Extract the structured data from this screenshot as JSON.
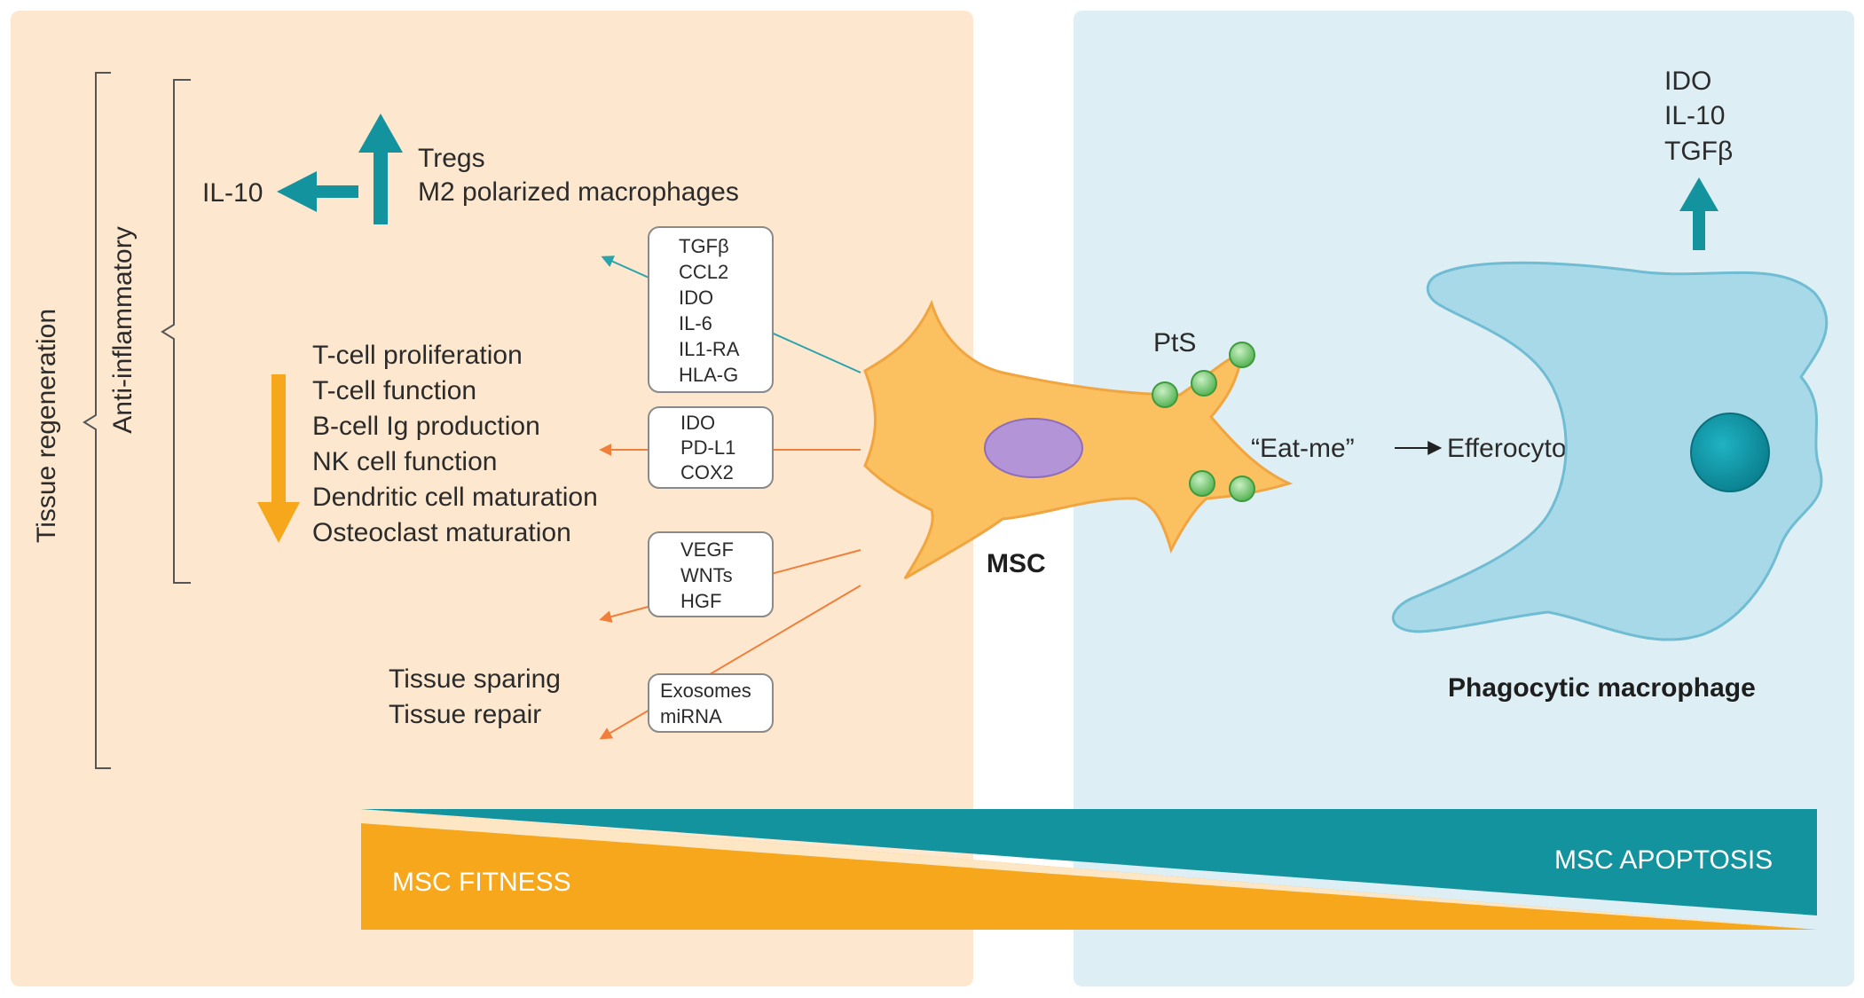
{
  "colors": {
    "left_panel": "#fde8cf",
    "right_panel": "#ddeef4",
    "orange": "#f6a71c",
    "teal": "#13939e",
    "orange_thin": "#f07f3c",
    "cell_orange": "#fbc060",
    "nucleus_purple": "#b394d6",
    "bead_green": "#6cc466",
    "macrophage_blue": "#a8d9e8"
  },
  "icons": {
    "msc_cell": "msc-cell-icon",
    "macrophage_cell": "macrophage-cell-icon",
    "pts_bead": "pts-bead-icon"
  },
  "labels": {
    "tissue_regeneration": "Tissue regeneration",
    "anti_inflammatory": "Anti-inflammatory",
    "il10_left": "IL-10",
    "tregs": "Tregs",
    "m2": "M2 polarized macrophages",
    "suppressed": [
      "T-cell proliferation",
      "T-cell function",
      "B-cell Ig production",
      "NK cell function",
      "Dendritic cell maturation",
      "Osteoclast maturation"
    ],
    "tissue_sparing": "Tissue sparing",
    "tissue_repair": "Tissue repair",
    "msc": "MSC",
    "pts": "PtS",
    "eat_me": "“Eat-me”",
    "efferocytosis": "Efferocytosis",
    "phagocytic_macrophage": "Phagocytic macrophage",
    "macrophage_outputs": [
      "IDO",
      "IL-10",
      "TGFβ"
    ],
    "msc_fitness": "MSC FITNESS",
    "msc_apoptosis": "MSC APOPTOSIS"
  },
  "boxes": {
    "box1": [
      "TGFβ",
      "CCL2",
      "IDO",
      "IL-6",
      "IL1-RA",
      "HLA-G"
    ],
    "box2": [
      "IDO",
      "PD-L1",
      "COX2"
    ],
    "box3": [
      "VEGF",
      "WNTs",
      "HGF"
    ],
    "box4": [
      "Exosomes",
      "miRNA"
    ]
  }
}
